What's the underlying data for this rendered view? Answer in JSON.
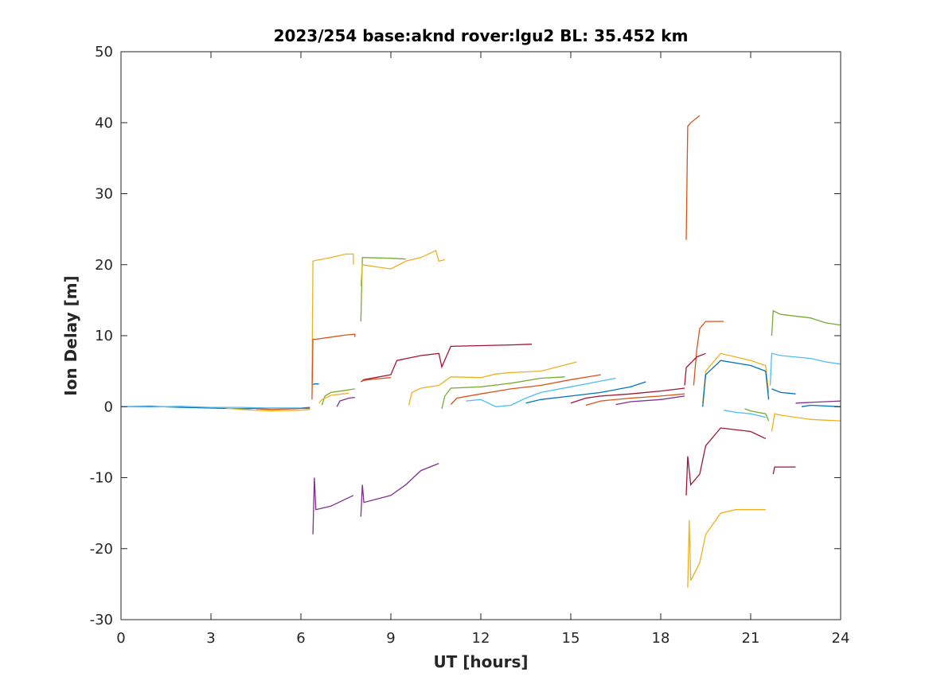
{
  "chart_data": {
    "type": "line",
    "title": "2023/254 base:aknd rover:lgu2 BL: 35.452 km",
    "xlabel": "UT [hours]",
    "ylabel": "Ion Delay [m]",
    "xlim": [
      0,
      24
    ],
    "ylim": [
      -30,
      50
    ],
    "xticks": [
      0,
      3,
      6,
      9,
      12,
      15,
      18,
      21,
      24
    ],
    "yticks": [
      -30,
      -20,
      -10,
      0,
      10,
      20,
      30,
      40,
      50
    ],
    "grid": false,
    "legend": "none",
    "colors": {
      "blue": "#0072BD",
      "orange": "#D95319",
      "yellow": "#EDB120",
      "purple": "#7E2F8E",
      "green": "#77AC30",
      "cyan": "#4DBEEE",
      "darkred": "#A2142F"
    },
    "series": [
      {
        "color": "blue",
        "x": [
          0,
          1,
          2,
          3,
          4,
          5,
          6,
          6.3
        ],
        "y": [
          0,
          0.05,
          -0.1,
          -0.2,
          -0.3,
          -0.2,
          -0.2,
          -0.1
        ]
      },
      {
        "color": "cyan",
        "x": [
          0,
          1,
          2,
          3,
          4,
          5,
          6,
          6.3
        ],
        "y": [
          0,
          -0.05,
          0.05,
          -0.1,
          -0.1,
          -0.2,
          -0.2,
          -0.3
        ]
      },
      {
        "color": "yellow",
        "x": [
          3.5,
          4,
          5,
          6,
          6.3
        ],
        "y": [
          -0.2,
          -0.4,
          -0.6,
          -0.5,
          -0.4
        ]
      },
      {
        "color": "orange",
        "x": [
          4.5,
          5,
          5.8,
          6.3
        ],
        "y": [
          -0.3,
          -0.4,
          -0.3,
          -0.2
        ]
      },
      {
        "color": "yellow",
        "x": [
          6.37,
          6.4,
          6.5,
          7,
          7.5,
          7.75,
          7.75
        ],
        "y": [
          3,
          20.5,
          20.6,
          21,
          21.5,
          21.5,
          20
        ]
      },
      {
        "color": "orange",
        "x": [
          6.37,
          6.4,
          6.5,
          7,
          7.5,
          7.8,
          7.8
        ],
        "y": [
          1,
          9.5,
          9.5,
          9.8,
          10.1,
          10.2,
          9.8
        ]
      },
      {
        "color": "blue",
        "x": [
          6.4,
          6.45,
          6.6
        ],
        "y": [
          3.1,
          3.2,
          3.2
        ]
      },
      {
        "color": "purple",
        "x": [
          6.4,
          6.45,
          6.5,
          7,
          7.5,
          7.75
        ],
        "y": [
          -18,
          -10,
          -14.5,
          -14,
          -13,
          -12.5
        ]
      },
      {
        "color": "green",
        "x": [
          6.7,
          6.8,
          7,
          7.5,
          7.8
        ],
        "y": [
          0.2,
          1.5,
          2,
          2.3,
          2.5
        ]
      },
      {
        "color": "yellow",
        "x": [
          6.6,
          6.7,
          7,
          7.6
        ],
        "y": [
          0.5,
          1,
          1.6,
          1.9
        ]
      },
      {
        "color": "purple",
        "x": [
          7.2,
          7.3,
          7.6,
          7.8
        ],
        "y": [
          0,
          0.8,
          1.2,
          1.3
        ]
      },
      {
        "color": "green",
        "x": [
          8,
          8.05,
          8.1,
          9,
          9.5
        ],
        "y": [
          12,
          21,
          21,
          20.9,
          20.8
        ]
      },
      {
        "color": "yellow",
        "x": [
          8,
          8.05,
          8.5,
          9,
          9.5,
          10,
          10.5,
          10.6,
          10.8
        ],
        "y": [
          17,
          20,
          19.7,
          19.4,
          20.5,
          21,
          22,
          20.5,
          20.7
        ]
      },
      {
        "color": "purple",
        "x": [
          8,
          8.05,
          8.1,
          9,
          9.5,
          10,
          10.6
        ],
        "y": [
          -15.5,
          -11,
          -13.5,
          -12.5,
          -11,
          -9,
          -8
        ]
      },
      {
        "color": "darkred",
        "x": [
          8,
          8.1,
          9,
          9.2,
          10,
          10.6,
          10.7,
          11,
          12,
          13,
          13.7
        ],
        "y": [
          3.5,
          3.8,
          4.5,
          6.5,
          7.2,
          7.5,
          5.6,
          8.5,
          8.6,
          8.7,
          8.8
        ]
      },
      {
        "color": "orange",
        "x": [
          8,
          8.1,
          8.5,
          9
        ],
        "y": [
          3.5,
          3.7,
          3.9,
          4.1
        ]
      },
      {
        "color": "yellow",
        "x": [
          9.6,
          9.7,
          10,
          10.6,
          11,
          12,
          12.5,
          13,
          14,
          15.2
        ],
        "y": [
          0.2,
          2,
          2.6,
          3,
          4.2,
          4.1,
          4.6,
          4.8,
          5,
          6.3
        ]
      },
      {
        "color": "green",
        "x": [
          10.7,
          10.8,
          11,
          12,
          13,
          14,
          14.8
        ],
        "y": [
          -0.3,
          1.5,
          2.6,
          2.8,
          3.3,
          4,
          4.2
        ]
      },
      {
        "color": "orange",
        "x": [
          11,
          11.2,
          12,
          13,
          14,
          15,
          16
        ],
        "y": [
          0.3,
          1.2,
          1.8,
          2.5,
          3,
          3.8,
          4.5
        ]
      },
      {
        "color": "cyan",
        "x": [
          11.5,
          12,
          12.5,
          13,
          13.5,
          14,
          15,
          16.5
        ],
        "y": [
          0.8,
          1,
          0,
          0.2,
          1.2,
          2,
          2.8,
          4
        ]
      },
      {
        "color": "blue",
        "x": [
          13.5,
          14,
          15,
          16,
          17,
          17.5
        ],
        "y": [
          0.5,
          1,
          1.5,
          2,
          2.8,
          3.5
        ]
      },
      {
        "color": "darkred",
        "x": [
          15,
          15.5,
          16,
          17,
          18,
          18.8
        ],
        "y": [
          0.5,
          1.2,
          1.5,
          1.8,
          2.2,
          2.6
        ]
      },
      {
        "color": "orange",
        "x": [
          15.5,
          16,
          17,
          18,
          18.8
        ],
        "y": [
          0.2,
          0.8,
          1.2,
          1.5,
          1.8
        ]
      },
      {
        "color": "purple",
        "x": [
          16.5,
          17,
          18,
          18.8
        ],
        "y": [
          0.3,
          0.7,
          1,
          1.5
        ]
      },
      {
        "color": "orange",
        "x": [
          18.85,
          18.9,
          19,
          19.3
        ],
        "y": [
          23.5,
          39.5,
          40,
          41
        ]
      },
      {
        "color": "orange",
        "x": [
          19.1,
          19.2,
          19.3,
          19.5,
          20.1
        ],
        "y": [
          3,
          8,
          11,
          12,
          12
        ]
      },
      {
        "color": "darkred",
        "x": [
          18.8,
          18.85,
          19.2,
          19.5
        ],
        "y": [
          3,
          5.5,
          7,
          7.5
        ]
      },
      {
        "color": "darkred",
        "x": [
          18.85,
          18.9,
          19,
          19.3,
          19.5,
          20,
          21,
          21.5
        ],
        "y": [
          -12.5,
          -7,
          -11,
          -9.5,
          -5.5,
          -3,
          -3.5,
          -4.5
        ]
      },
      {
        "color": "yellow",
        "x": [
          18.9,
          18.95,
          19,
          19.3,
          19.5,
          20,
          20.5,
          21.5
        ],
        "y": [
          -25.5,
          -16,
          -24.5,
          -22,
          -18,
          -15,
          -14.5,
          -14.5
        ]
      },
      {
        "color": "yellow",
        "x": [
          19.4,
          19.5,
          20,
          21,
          21.5,
          21.6
        ],
        "y": [
          0.5,
          5,
          7.5,
          6.5,
          5.8,
          2
        ]
      },
      {
        "color": "blue",
        "x": [
          19.4,
          19.5,
          20,
          21,
          21.5,
          21.6
        ],
        "y": [
          0,
          4.5,
          6.5,
          5.8,
          5,
          1
        ]
      },
      {
        "color": "cyan",
        "x": [
          20.1,
          20.5,
          21,
          21.5
        ],
        "y": [
          -0.5,
          -0.8,
          -1,
          -1.5
        ]
      },
      {
        "color": "green",
        "x": [
          20.8,
          21,
          21.5,
          21.6
        ],
        "y": [
          -0.3,
          -0.6,
          -1,
          -2
        ]
      },
      {
        "color": "green",
        "x": [
          21.7,
          21.75,
          22,
          23,
          23.5,
          24
        ],
        "y": [
          10,
          13.5,
          13,
          12.5,
          11.8,
          11.5
        ]
      },
      {
        "color": "cyan",
        "x": [
          21.65,
          21.7,
          22,
          23,
          23.5,
          24
        ],
        "y": [
          3,
          7.5,
          7.2,
          6.8,
          6.3,
          6
        ]
      },
      {
        "color": "blue",
        "x": [
          21.7,
          22,
          22.5
        ],
        "y": [
          2.5,
          2,
          1.8
        ]
      },
      {
        "color": "yellow",
        "x": [
          21.7,
          21.8,
          22,
          23,
          24
        ],
        "y": [
          -3.5,
          -1,
          -1.2,
          -1.8,
          -2
        ]
      },
      {
        "color": "darkred",
        "x": [
          21.75,
          21.8,
          22.5
        ],
        "y": [
          -9.5,
          -8.5,
          -8.5
        ]
      },
      {
        "color": "purple",
        "x": [
          22.5,
          23,
          24
        ],
        "y": [
          0.5,
          0.6,
          0.8
        ]
      },
      {
        "color": "blue",
        "x": [
          22.7,
          23,
          24
        ],
        "y": [
          0,
          0.2,
          0
        ]
      }
    ]
  }
}
